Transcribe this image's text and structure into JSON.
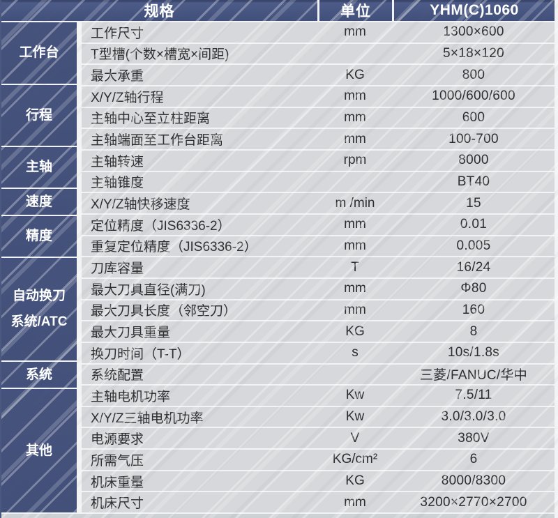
{
  "colors": {
    "header_blue": "#414f7b",
    "category_blue": "#42507a",
    "row_gray": "#d6d8db",
    "separator_white": "#f2f3f5",
    "text_dark": "#2d2e30",
    "text_white": "#ffffff"
  },
  "header": {
    "spec_label": "规格",
    "unit_label": "单位",
    "model_label": "YHM(C)1060"
  },
  "groups": [
    {
      "label": "工作台",
      "rows": [
        {
          "name": "工作尺寸",
          "unit": "mm",
          "value": "1300×600"
        },
        {
          "name": "T型槽(个数×槽宽×间距)",
          "unit": "",
          "value": "5×18×120"
        },
        {
          "name": "最大承重",
          "unit": "KG",
          "value": "800"
        }
      ]
    },
    {
      "label": "行程",
      "rows": [
        {
          "name": "X/Y/Z轴行程",
          "unit": "mm",
          "value": "1000/600/600"
        },
        {
          "name": "主轴中心至立柱距离",
          "unit": "mm",
          "value": "600"
        },
        {
          "name": "主轴端面至工作台距离",
          "unit": "mm",
          "value": "100-700"
        }
      ]
    },
    {
      "label": "主轴",
      "rows": [
        {
          "name": "主轴转速",
          "unit": "rpm",
          "value": "8000"
        },
        {
          "name": "主轴锥度",
          "unit": "",
          "value": "BT40"
        }
      ]
    },
    {
      "label": "速度",
      "rows": [
        {
          "name": "X/Y/Z轴快移速度",
          "unit": "m /min",
          "value": "15"
        }
      ]
    },
    {
      "label": "精度",
      "rows": [
        {
          "name": "定位精度（JIS6336-2）",
          "unit": "mm",
          "value": "0.01"
        },
        {
          "name": "重复定位精度（JIS6336-2）",
          "unit": "mm",
          "value": "0.005"
        }
      ]
    },
    {
      "label": "自动换刀系统/ATC",
      "rows": [
        {
          "name": "刀库容量",
          "unit": "T",
          "value": "16/24"
        },
        {
          "name": "最大刀具直径(满刀)",
          "unit": "mm",
          "value": "Φ80"
        },
        {
          "name": "最大刀具长度（邻空刀）",
          "unit": "mm",
          "value": "160"
        },
        {
          "name": "最大刀具重量",
          "unit": "KG",
          "value": "8"
        },
        {
          "name": "换刀时间（T-T）",
          "unit": "s",
          "value": "10s/1.8s"
        }
      ]
    },
    {
      "label": "系统",
      "rows": [
        {
          "name": "系统配置",
          "unit": "",
          "value": "三菱/FANUC/华中"
        }
      ]
    },
    {
      "label": "其他",
      "rows": [
        {
          "name": "主轴电机功率",
          "unit": "Kw",
          "value": "7.5/11"
        },
        {
          "name": "X/Y/Z三轴电机功率",
          "unit": "Kw",
          "value": "3.0/3.0/3.0"
        },
        {
          "name": "电源要求",
          "unit": "V",
          "value": "380V"
        },
        {
          "name": "所需气压",
          "unit": "KG/cm²",
          "value": "6"
        },
        {
          "name": "机床重量",
          "unit": "KG",
          "value": "8000/8300"
        },
        {
          "name": "机床尺寸",
          "unit": "mm",
          "value": "3200×2770×2700"
        }
      ]
    }
  ]
}
